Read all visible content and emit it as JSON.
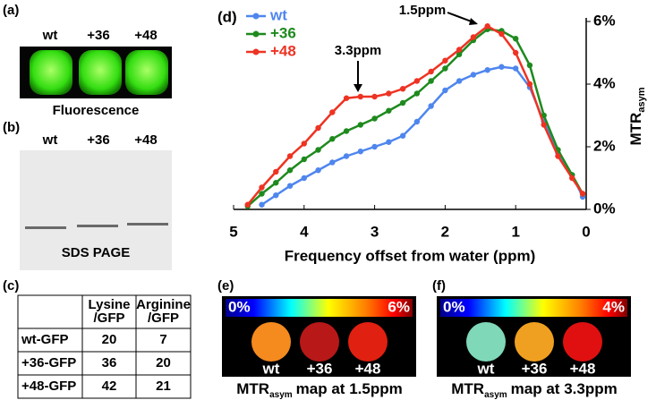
{
  "panel_a": {
    "label": "(a)",
    "lanes": [
      "wt",
      "+36",
      "+48"
    ],
    "caption": "Fluorescence"
  },
  "panel_b": {
    "label": "(b)",
    "lanes": [
      "wt",
      "+36",
      "+48"
    ],
    "caption": "SDS PAGE"
  },
  "panel_c": {
    "label": "(c)",
    "columns": [
      [
        "Lysine",
        "/GFP"
      ],
      [
        "Arginine",
        "/GFP"
      ]
    ],
    "rows": [
      [
        "wt-GFP",
        20,
        7
      ],
      [
        "+36-GFP",
        36,
        20
      ],
      [
        "+48-GFP",
        42,
        21
      ]
    ]
  },
  "chart_data": {
    "type": "line",
    "panel_label": "(d)",
    "xlabel": "Frequency offset from water (ppm)",
    "ylabel": "MTR",
    "ylabel_sub": "asym",
    "x": [
      4.8,
      4.6,
      4.4,
      4.2,
      4.0,
      3.8,
      3.6,
      3.4,
      3.2,
      3.0,
      2.8,
      2.6,
      2.4,
      2.2,
      2.0,
      1.8,
      1.6,
      1.4,
      1.2,
      1.0,
      0.8,
      0.6,
      0.4,
      0.2,
      0.05
    ],
    "series": [
      {
        "name": "wt",
        "color": "#4f86ee",
        "values": [
          null,
          0.15,
          0.45,
          0.75,
          1.0,
          1.25,
          1.5,
          1.7,
          1.85,
          2.0,
          2.15,
          2.35,
          2.8,
          3.3,
          3.8,
          4.1,
          4.3,
          4.45,
          4.55,
          4.5,
          3.9,
          2.8,
          1.8,
          1.1,
          0.4
        ]
      },
      {
        "name": "+36",
        "color": "#1e8a1e",
        "values": [
          0.1,
          0.5,
          0.85,
          1.25,
          1.6,
          1.9,
          2.25,
          2.5,
          2.7,
          2.9,
          3.15,
          3.4,
          3.7,
          4.1,
          4.5,
          4.95,
          5.4,
          5.75,
          5.7,
          5.45,
          4.6,
          3.0,
          1.9,
          1.1,
          0.5
        ]
      },
      {
        "name": "+48",
        "color": "#ee3323",
        "values": [
          0.15,
          0.7,
          1.2,
          1.7,
          2.1,
          2.6,
          3.1,
          3.55,
          3.6,
          3.6,
          3.7,
          3.85,
          4.1,
          4.4,
          4.75,
          5.1,
          5.5,
          5.85,
          5.6,
          5.0,
          4.0,
          2.7,
          1.7,
          1.0,
          0.5
        ]
      }
    ],
    "xlim": [
      5,
      0
    ],
    "xticks": [
      5,
      4,
      3,
      2,
      1,
      0
    ],
    "ylim": [
      0,
      6
    ],
    "yticks": [
      {
        "value": 0,
        "label": "0%"
      },
      {
        "value": 2,
        "label": "2%"
      },
      {
        "value": 4,
        "label": "4%"
      },
      {
        "value": 6,
        "label": "6%"
      }
    ],
    "legend": "top-left",
    "annotations": [
      "1.5ppm",
      "3.3ppm"
    ]
  },
  "panel_e": {
    "label": "(e)",
    "scale": [
      "0%",
      "6%"
    ],
    "samples": [
      "wt",
      "+36",
      "+48"
    ],
    "caption": {
      "main": "MTR",
      "sub": "asym",
      "rest": "map at 1.5ppm"
    }
  },
  "panel_f": {
    "label": "(f)",
    "scale": [
      "0%",
      "4%"
    ],
    "samples": [
      "wt",
      "+36",
      "+48"
    ],
    "caption": {
      "main": "MTR",
      "sub": "asym",
      "rest": "map at 3.3ppm"
    }
  }
}
